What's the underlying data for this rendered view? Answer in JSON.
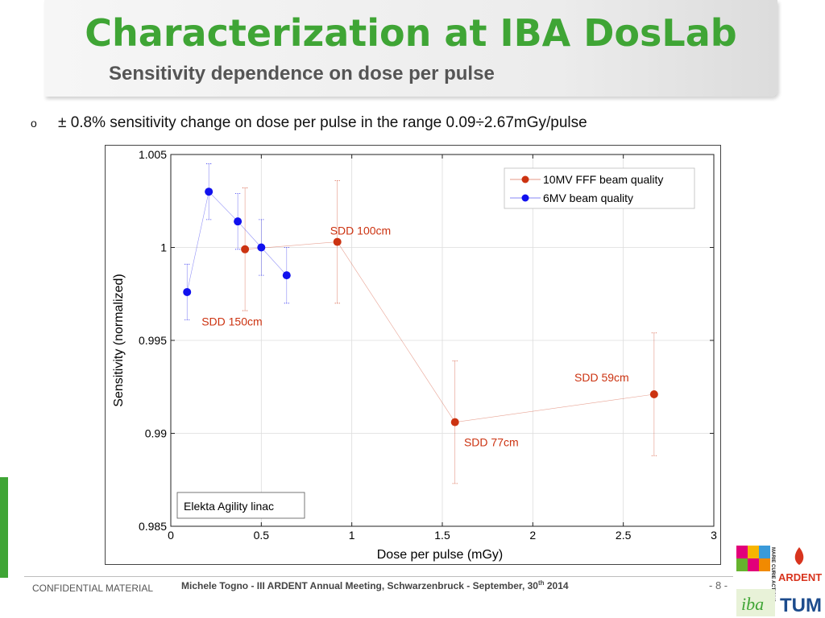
{
  "header": {
    "title": "Characterization at IBA DosLab",
    "subtitle": "Sensitivity dependence on dose per pulse"
  },
  "bullet": {
    "marker": "o",
    "text": "± 0.8% sensitivity change on dose per pulse in the range 0.09÷2.67mGy/pulse"
  },
  "footer": {
    "left": "CONFIDENTIAL MATERIAL",
    "center_main": "Michele Togno - III ARDENT Annual Meeting, Schwarzenbruck - September, 30",
    "center_sup": "th",
    "center_tail": " 2014",
    "page": "- 8 -"
  },
  "logos": {
    "marie_curie": "MARIE CURIE ACTIONS",
    "ardent": "ARDENT",
    "iba": "iba",
    "tum": "TUM"
  },
  "colors": {
    "title_green": "#3fa535",
    "series_fff": "#cc3311",
    "series_6mv": "#1111ee"
  },
  "chart_data": {
    "type": "scatter",
    "xlabel": "Dose per pulse (mGy)",
    "ylabel": "Sensitivity (normalized)",
    "xlim": [
      0,
      3
    ],
    "ylim": [
      0.985,
      1.005
    ],
    "xticks": [
      0,
      0.5,
      1,
      1.5,
      2,
      2.5,
      3
    ],
    "xtick_labels": [
      "0",
      "0.5",
      "1",
      "1.5",
      "2",
      "2.5",
      "3"
    ],
    "yticks": [
      0.985,
      0.99,
      0.995,
      1,
      1.005
    ],
    "ytick_labels": [
      "0.985",
      "0.99",
      "0.995",
      "1",
      "1.005"
    ],
    "grid": true,
    "legend_position": "top-right",
    "series": [
      {
        "name": "10MV FFF beam quality",
        "color": "#cc3311",
        "points": [
          {
            "x": 0.41,
            "y": 0.9999,
            "err": 0.0033
          },
          {
            "x": 0.92,
            "y": 1.0003,
            "err": 0.0033
          },
          {
            "x": 1.57,
            "y": 0.9906,
            "err": 0.0033
          },
          {
            "x": 2.67,
            "y": 0.9921,
            "err": 0.0033
          }
        ]
      },
      {
        "name": "6MV beam quality",
        "color": "#1111ee",
        "points": [
          {
            "x": 0.09,
            "y": 0.9976,
            "err": 0.0015
          },
          {
            "x": 0.21,
            "y": 1.003,
            "err": 0.0015
          },
          {
            "x": 0.37,
            "y": 1.0014,
            "err": 0.0015
          },
          {
            "x": 0.5,
            "y": 1.0,
            "err": 0.0015
          },
          {
            "x": 0.64,
            "y": 0.9985,
            "err": 0.0015
          }
        ]
      }
    ],
    "annotations": [
      {
        "text": "SDD 100cm",
        "x": 0.88,
        "y": 1.0007
      },
      {
        "text": "SDD 150cm",
        "x": 0.17,
        "y": 0.9958
      },
      {
        "text": "SDD 59cm",
        "x": 2.23,
        "y": 0.9928
      },
      {
        "text": "SDD 77cm",
        "x": 1.62,
        "y": 0.9893
      }
    ],
    "note": "Elekta Agility linac"
  }
}
